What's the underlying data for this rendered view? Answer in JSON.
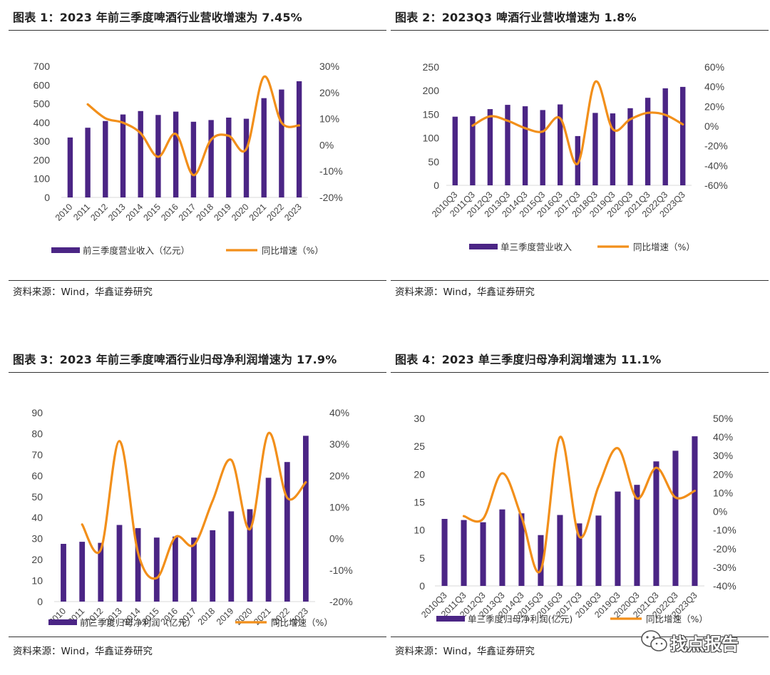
{
  "colors": {
    "bar": "#4b2585",
    "line": "#f28f1a",
    "axis": "#d9d9d9"
  },
  "charts": [
    {
      "title": "图表 1：2023 年前三季度啤酒行业营收增速为 7.45%",
      "source": "资料来源：Wind，华鑫证券研究",
      "legend": {
        "bar": "前三季度营业收入（亿元）",
        "line": "同比增速（%）"
      }
    },
    {
      "title": "图表 2：2023Q3 啤酒行业营收增速为 1.8%",
      "source": "资料来源：Wind，华鑫证券研究",
      "legend": {
        "bar": "单三季度营业收入",
        "line": "同比增速（%）"
      }
    },
    {
      "title": "图表 3：2023 年前三季度啤酒行业归母净利润增速为 17.9%",
      "source": "资料来源：Wind，华鑫证券研究",
      "legend": {
        "bar": "前三季度归母净利润（亿元）",
        "line": "同比增速（%）"
      }
    },
    {
      "title": "图表 4：2023 单三季度归母净利润增速为 11.1%",
      "source": "资料来源：Wind，华鑫证券研究",
      "legend": {
        "bar": "单三季度归母净利润(亿元)",
        "line": "同比增速（%）"
      }
    }
  ],
  "chart_data": [
    {
      "type": "bar",
      "title": "图表 1：2023 年前三季度啤酒行业营收增速为 7.45%",
      "categories": [
        "2010",
        "2011",
        "2012",
        "2013",
        "2014",
        "2015",
        "2016",
        "2017",
        "2018",
        "2019",
        "2020",
        "2021",
        "2022",
        "2023"
      ],
      "series": [
        {
          "name": "前三季度营业收入（亿元）",
          "type": "bar",
          "axis": "left",
          "values": [
            320,
            372,
            408,
            443,
            461,
            440,
            458,
            404,
            413,
            426,
            420,
            530,
            576,
            620
          ]
        },
        {
          "name": "同比增速（%）",
          "type": "line",
          "axis": "right",
          "values": [
            null,
            15.5,
            10.2,
            8.5,
            4.5,
            -4.5,
            4.2,
            -11.5,
            2.0,
            3.5,
            -1.5,
            26.0,
            8.5,
            7.45
          ]
        }
      ],
      "yleft": {
        "min": 0,
        "max": 700,
        "step": 100,
        "ticks": [
          "0",
          "100",
          "200",
          "300",
          "400",
          "500",
          "600",
          "700"
        ]
      },
      "yright": {
        "min": -20,
        "max": 30,
        "step": 10,
        "ticks": [
          "-20%",
          "-10%",
          "0%",
          "10%",
          "20%",
          "30%"
        ]
      }
    },
    {
      "type": "bar",
      "title": "图表 2：2023Q3 啤酒行业营收增速为 1.8%",
      "categories": [
        "2010Q3",
        "2011Q3",
        "2012Q3",
        "2013Q3",
        "2014Q3",
        "2015Q3",
        "2016Q3",
        "2017Q3",
        "2018Q3",
        "2019Q3",
        "2020Q3",
        "2021Q3",
        "2022Q3",
        "2023Q3"
      ],
      "series": [
        {
          "name": "单三季度营业收入",
          "type": "bar",
          "axis": "left",
          "values": [
            145,
            146,
            161,
            170,
            167,
            159,
            171,
            104,
            153,
            152,
            163,
            185,
            205,
            208
          ]
        },
        {
          "name": "同比增速（%）",
          "type": "line",
          "axis": "right",
          "values": [
            null,
            0.5,
            10.0,
            5.5,
            -2.0,
            -5.5,
            8.0,
            -38.0,
            45.0,
            -3.0,
            7.0,
            13.5,
            11.5,
            1.8
          ]
        }
      ],
      "yleft": {
        "min": 0,
        "max": 250,
        "step": 50,
        "ticks": [
          "0",
          "50",
          "100",
          "150",
          "200",
          "250"
        ]
      },
      "yright": {
        "min": -60,
        "max": 60,
        "step": 20,
        "ticks": [
          "-60%",
          "-40%",
          "-20%",
          "0%",
          "20%",
          "40%",
          "60%"
        ]
      }
    },
    {
      "type": "bar",
      "title": "图表 3：2023 年前三季度啤酒行业归母净利润增速为 17.9%",
      "categories": [
        "2010",
        "2011",
        "2012",
        "2013",
        "2014",
        "2015",
        "2016",
        "2017",
        "2018",
        "2019",
        "2020",
        "2021",
        "2022",
        "2023"
      ],
      "series": [
        {
          "name": "前三季度归母净利润（亿元）",
          "type": "bar",
          "axis": "left",
          "values": [
            27.5,
            28.5,
            28,
            36.5,
            35,
            30.5,
            31,
            30.5,
            34,
            43,
            44,
            59,
            66.5,
            79
          ]
        },
        {
          "name": "同比增速（%）",
          "type": "line",
          "axis": "right",
          "values": [
            null,
            4.5,
            -3.5,
            31.0,
            -4.5,
            -12.5,
            0.5,
            -2.0,
            12.0,
            25.0,
            3.0,
            33.5,
            13.0,
            17.9
          ]
        }
      ],
      "yleft": {
        "min": 0,
        "max": 90,
        "step": 10,
        "ticks": [
          "0",
          "10",
          "20",
          "30",
          "40",
          "50",
          "60",
          "70",
          "80",
          "90"
        ]
      },
      "yright": {
        "min": -20,
        "max": 40,
        "step": 10,
        "ticks": [
          "-20%",
          "-10%",
          "0%",
          "10%",
          "20%",
          "30%",
          "40%"
        ]
      }
    },
    {
      "type": "bar",
      "title": "图表 4：2023 单三季度归母净利润增速为 11.1%",
      "categories": [
        "2010Q3",
        "2011Q3",
        "2012Q3",
        "2013Q3",
        "2014Q3",
        "2015Q3",
        "2016Q3",
        "2017Q3",
        "2018Q3",
        "2019Q3",
        "2020Q3",
        "2021Q3",
        "2022Q3",
        "2023Q3"
      ],
      "series": [
        {
          "name": "单三季度归母净利润(亿元)",
          "type": "bar",
          "axis": "left",
          "values": [
            12,
            11.8,
            11.4,
            13.7,
            13,
            9.1,
            12.7,
            11.2,
            12.6,
            16.9,
            18.1,
            22.3,
            24.2,
            26.8
          ]
        },
        {
          "name": "同比增速（%）",
          "type": "line",
          "axis": "right",
          "values": [
            null,
            -2.5,
            -4.0,
            20.5,
            -3.0,
            -31.5,
            40.0,
            -13.5,
            13.5,
            34.0,
            7.0,
            23.5,
            7.5,
            11.1
          ]
        }
      ],
      "yleft": {
        "min": 0,
        "max": 30,
        "step": 5,
        "ticks": [
          "0",
          "5",
          "10",
          "15",
          "20",
          "25",
          "30"
        ]
      },
      "yright": {
        "min": -40,
        "max": 50,
        "step": 10,
        "ticks": [
          "-40%",
          "-30%",
          "-20%",
          "-10%",
          "0%",
          "10%",
          "20%",
          "30%",
          "40%",
          "50%"
        ]
      }
    }
  ],
  "watermark": {
    "text": "找点报告",
    "icon": "wechat-icon"
  }
}
